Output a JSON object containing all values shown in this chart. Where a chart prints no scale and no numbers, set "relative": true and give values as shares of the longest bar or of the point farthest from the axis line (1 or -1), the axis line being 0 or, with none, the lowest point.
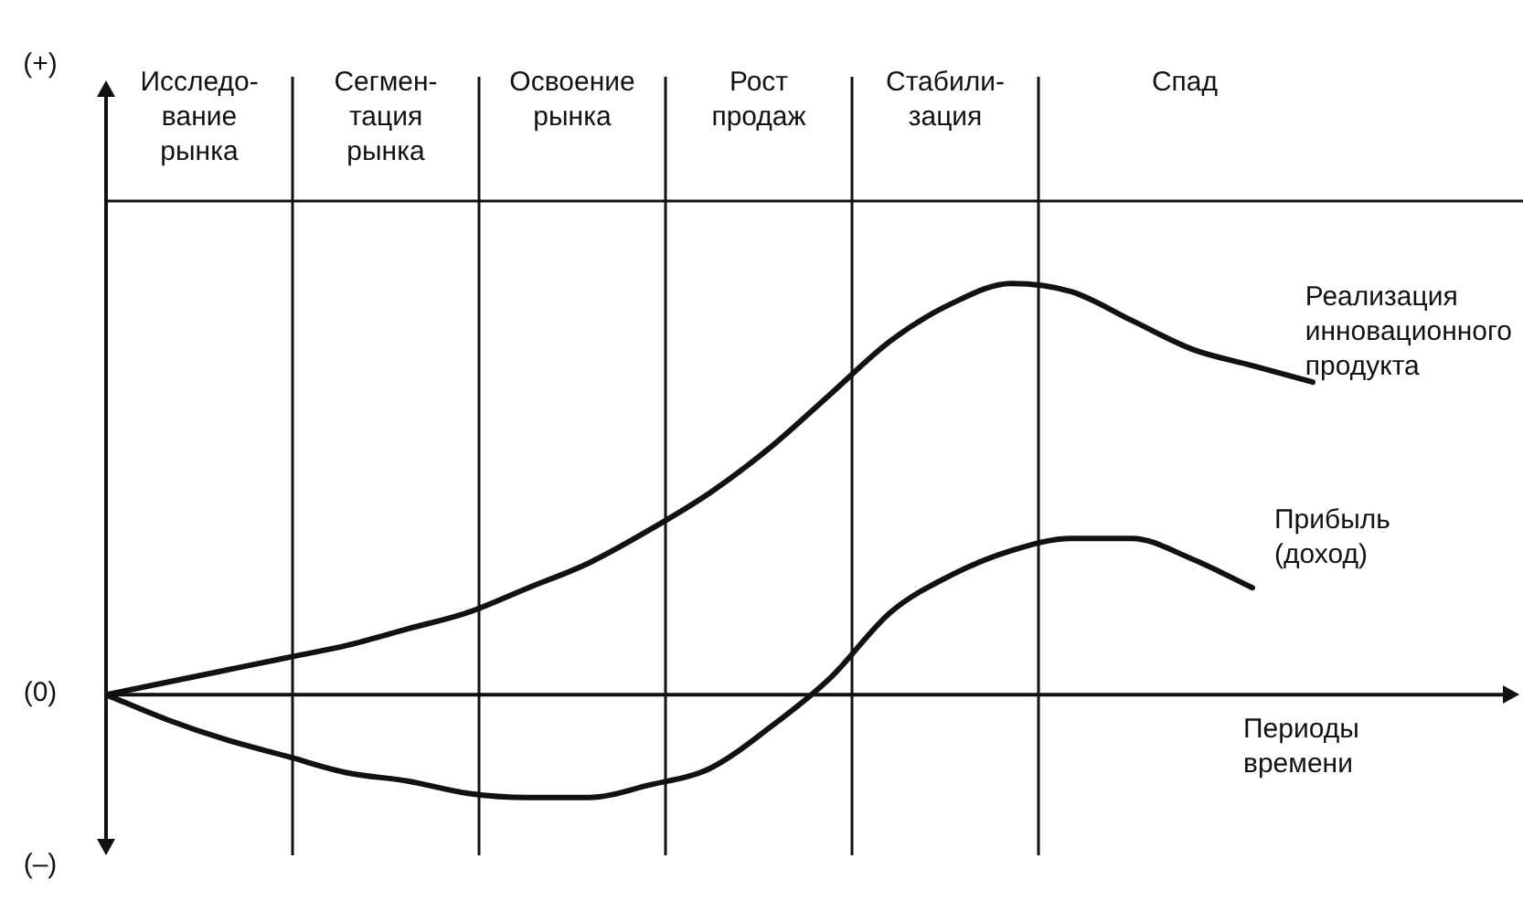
{
  "chart_data": {
    "type": "line",
    "relative": true,
    "xlabel": "Периоды\nвремени",
    "categories": [
      null,
      null,
      null,
      null,
      null,
      null,
      null,
      null,
      null,
      null,
      null,
      null,
      null,
      null,
      null,
      null,
      null,
      null,
      null,
      null,
      null
    ],
    "series": [
      {
        "name": "Реализация\nинновационного\nпродукта",
        "color": "#111111",
        "values": [
          0,
          0.03,
          0.06,
          0.09,
          0.12,
          0.16,
          0.2,
          0.26,
          0.32,
          0.4,
          0.49,
          0.6,
          0.73,
          0.86,
          0.95,
          1,
          0.98,
          0.91,
          0.84,
          0.8,
          0.76
        ]
      },
      {
        "name": "Прибыль\n(доход)",
        "color": "#111111",
        "values": [
          0,
          -0.06,
          -0.11,
          -0.15,
          -0.19,
          -0.21,
          -0.24,
          -0.25,
          -0.25,
          -0.22,
          -0.18,
          -0.08,
          0.04,
          0.2,
          0.29,
          0.35,
          0.38,
          0.38,
          0.33,
          0.26,
          null
        ]
      }
    ],
    "annotations": [
      "(+)",
      "(0)",
      "(–)",
      "Исследо-\nвание\nрынка",
      "Сегмен-\nтация\nрынка",
      "Освоение\nрынка",
      "Рост\nпродаж",
      "Стабили-\nзация",
      "Спад"
    ],
    "marker": "none",
    "line_style": "solid"
  }
}
